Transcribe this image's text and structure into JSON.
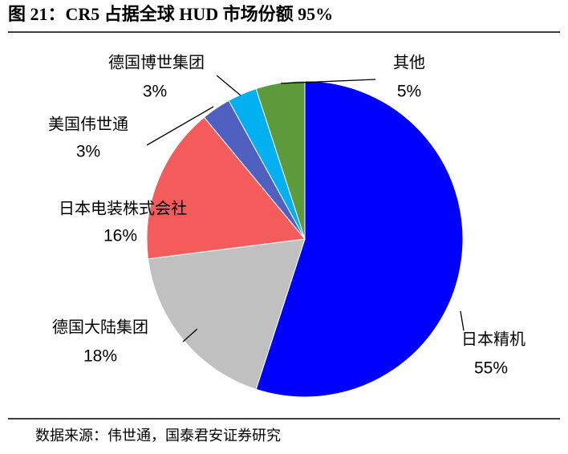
{
  "chart_data": {
    "type": "pie",
    "title": "图 21：CR5 占据全球 HUD 市场份额 95%",
    "categories": [
      "日本精机",
      "德国大陆集团",
      "日本电装株式会社",
      "美国伟世通",
      "德国博世集团",
      "其他"
    ],
    "values": [
      55,
      18,
      16,
      3,
      3,
      5
    ],
    "value_labels": [
      "55%",
      "18%",
      "16%",
      "3%",
      "3%",
      "5%"
    ],
    "colors": [
      "#0000ff",
      "#c0c0c0",
      "#f45b5b",
      "#5060c0",
      "#00b0f0",
      "#5c9a3c"
    ],
    "source": "数据来源：伟世通，国泰君安证券研究"
  }
}
